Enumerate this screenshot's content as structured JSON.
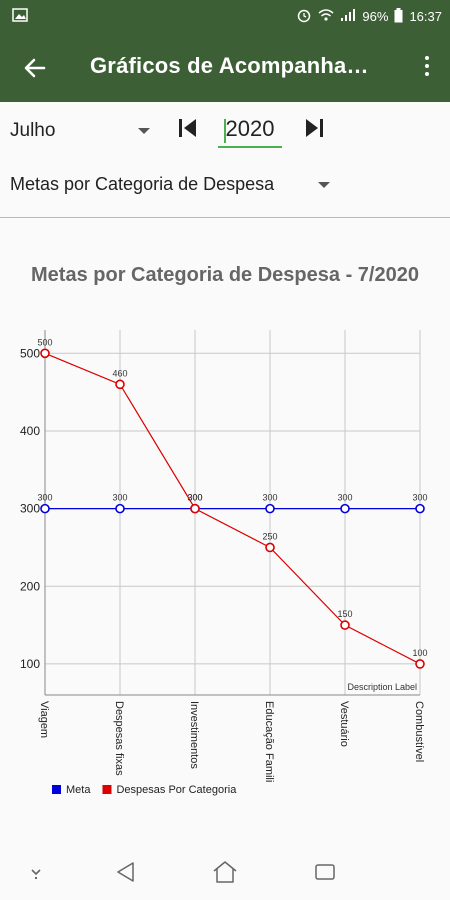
{
  "status_bar": {
    "battery": "96%",
    "time": "16:37"
  },
  "app_bar": {
    "title": "Gráficos de Acompanha…"
  },
  "filters": {
    "month": "Julho",
    "year": "2020",
    "category_type": "Metas por Categoria de Despesa"
  },
  "chart_data": {
    "type": "line",
    "title": "Metas por Categoria de Despesa - 7/2020",
    "categories": [
      "Viagem",
      "Despesas fixas",
      "Investimentos",
      "Educação Famili",
      "Vestuário",
      "Combustível"
    ],
    "series": [
      {
        "name": "Meta",
        "color": "#0000dd",
        "values": [
          300,
          300,
          300,
          300,
          300,
          300
        ]
      },
      {
        "name": "Despesas Por Categoria",
        "color": "#dd0000",
        "values": [
          500,
          460,
          300,
          250,
          150,
          100
        ]
      }
    ],
    "y_ticks": [
      100,
      200,
      300,
      400,
      500
    ],
    "ylim": [
      60,
      530
    ],
    "grid": true,
    "legend_position": "bottom-left",
    "description": "Description Label"
  },
  "colors": {
    "primary": "#3c5f35",
    "accent": "#4caf50"
  }
}
